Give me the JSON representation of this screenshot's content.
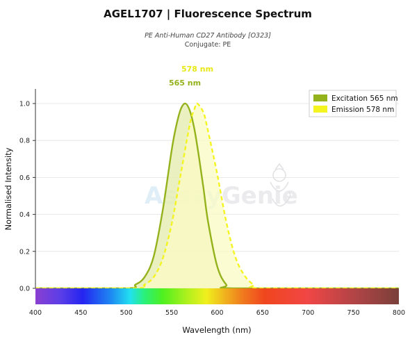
{
  "header": {
    "title": "AGEL1707  |  Fluorescence Spectrum",
    "subtitle": "PE Anti-Human CD27 Antibody [O323]",
    "conjugate": "Conjugate: PE"
  },
  "watermark": {
    "text_a": "Assay",
    "text_b": "Genie"
  },
  "colors": {
    "excitation": "#94b21c",
    "excitation_fill": "#e6edb4",
    "emission": "#f4f420",
    "emission_fill": "#fbfbc4",
    "emission_label": "#e8e817"
  },
  "chart_data": {
    "type": "area",
    "xlabel": "Wavelength (nm)",
    "ylabel": "Normalised Intensity",
    "xlim": [
      400,
      800
    ],
    "ylim": [
      0,
      1.05
    ],
    "xticks": [
      400,
      450,
      500,
      550,
      600,
      650,
      700,
      750,
      800
    ],
    "yticks": [
      0.0,
      0.2,
      0.4,
      0.6,
      0.8,
      1.0
    ],
    "ytick_labels": [
      "0.0",
      "0.2",
      "0.4",
      "0.6",
      "0.8",
      "1.0"
    ],
    "grid": true,
    "legend_position": "top-right",
    "series": [
      {
        "name": "Excitation",
        "peak": 565,
        "peak_label": "565 nm",
        "legend_label": "Excitation  565 nm",
        "style": "solid",
        "x": [
          400,
          500,
          510,
          520,
          530,
          540,
          550,
          555,
          560,
          565,
          570,
          575,
          580,
          585,
          590,
          600,
          610,
          620,
          800
        ],
        "y": [
          0,
          0,
          0.02,
          0.06,
          0.17,
          0.42,
          0.75,
          0.88,
          0.97,
          1.0,
          0.96,
          0.86,
          0.71,
          0.54,
          0.36,
          0.12,
          0.02,
          0,
          0
        ]
      },
      {
        "name": "Emission",
        "peak": 578,
        "peak_label": "578 nm",
        "legend_label": "Emission  578 nm",
        "style": "dashed",
        "x": [
          400,
          510,
          520,
          530,
          540,
          550,
          560,
          570,
          575,
          578,
          585,
          590,
          600,
          610,
          620,
          630,
          640,
          650,
          800
        ],
        "y": [
          0,
          0,
          0.02,
          0.06,
          0.16,
          0.35,
          0.62,
          0.89,
          0.97,
          1.0,
          0.95,
          0.85,
          0.62,
          0.36,
          0.17,
          0.07,
          0.02,
          0,
          0
        ]
      }
    ]
  }
}
